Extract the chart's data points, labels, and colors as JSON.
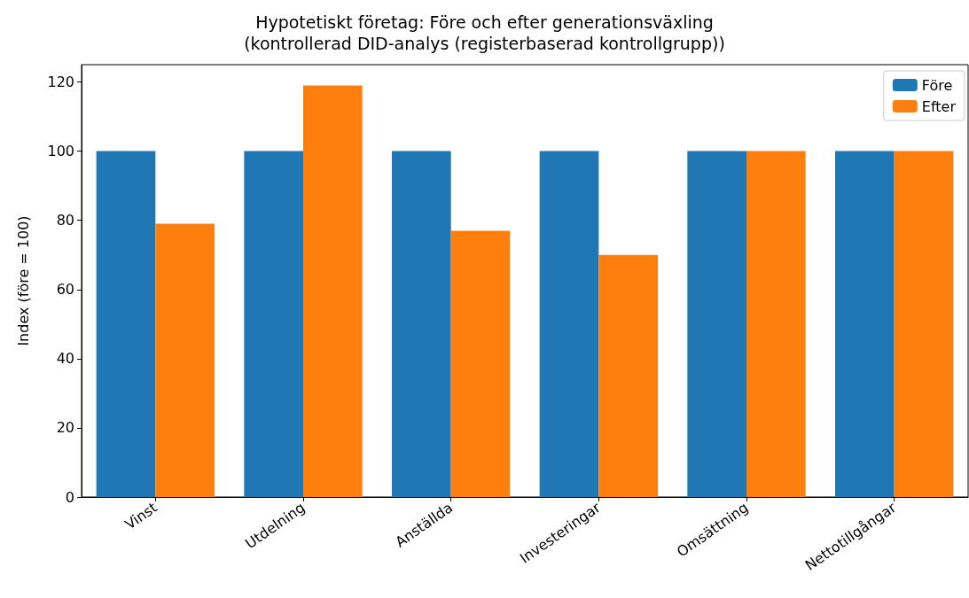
{
  "chart_data": {
    "type": "bar",
    "title": "Hypotetiskt företag: Före och efter generationsväxling\n(kontrollerad DID-analys (registerbaserad kontrollgrupp))",
    "ylabel": "Index (före = 100)",
    "categories": [
      "Vinst",
      "Utdelning",
      "Anställda",
      "Investeringar",
      "Omsättning",
      "Nettotillgångar"
    ],
    "series": [
      {
        "name": "Före",
        "color": "#1f77b4",
        "values": [
          100,
          100,
          100,
          100,
          100,
          100
        ]
      },
      {
        "name": "Efter",
        "color": "#ff7f0e",
        "values": [
          79,
          119,
          77,
          70,
          100,
          100
        ]
      }
    ],
    "ylim": [
      0,
      125
    ],
    "yticks": [
      0,
      20,
      40,
      60,
      80,
      100,
      120
    ],
    "grid": false,
    "legend": "top right"
  }
}
